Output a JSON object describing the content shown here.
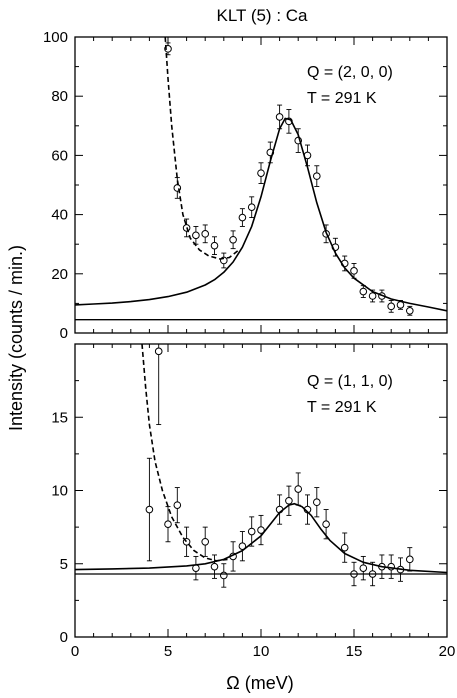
{
  "figure": {
    "title": "KLT (5) : Ca",
    "xlabel": "Ω (meV)",
    "ylabel": "Intensity (counts / min.)"
  },
  "chart_data": [
    {
      "type": "scatter",
      "panel": "top",
      "annotation_lines": [
        "Q = (2, 0, 0)",
        "T = 291 K"
      ],
      "xlim": [
        0,
        20
      ],
      "ylim": [
        0,
        100
      ],
      "x_ticks": [
        0,
        5,
        10,
        15,
        20
      ],
      "y_ticks": [
        0,
        20,
        40,
        60,
        80,
        100
      ],
      "grid": false,
      "series": [
        {
          "kind": "points_with_errorbars",
          "points": [
            {
              "x": 5.0,
              "y": 96,
              "err": 2
            },
            {
              "x": 5.5,
              "y": 49,
              "err": 3.5
            },
            {
              "x": 6.0,
              "y": 35.5,
              "err": 3
            },
            {
              "x": 6.5,
              "y": 33,
              "err": 3
            },
            {
              "x": 7.0,
              "y": 33.5,
              "err": 3
            },
            {
              "x": 7.5,
              "y": 29.5,
              "err": 3
            },
            {
              "x": 8.0,
              "y": 24.5,
              "err": 2.5
            },
            {
              "x": 8.5,
              "y": 31.5,
              "err": 3
            },
            {
              "x": 9.0,
              "y": 39,
              "err": 3
            },
            {
              "x": 9.5,
              "y": 42.5,
              "err": 3.5
            },
            {
              "x": 10.0,
              "y": 54,
              "err": 3.5
            },
            {
              "x": 10.5,
              "y": 61,
              "err": 3.5
            },
            {
              "x": 11.0,
              "y": 73,
              "err": 4
            },
            {
              "x": 11.5,
              "y": 71.5,
              "err": 4
            },
            {
              "x": 12.0,
              "y": 65,
              "err": 4
            },
            {
              "x": 12.5,
              "y": 60,
              "err": 3.5
            },
            {
              "x": 13.0,
              "y": 53,
              "err": 3.5
            },
            {
              "x": 13.5,
              "y": 33.5,
              "err": 3
            },
            {
              "x": 14.0,
              "y": 29,
              "err": 3
            },
            {
              "x": 14.5,
              "y": 23.5,
              "err": 2.5
            },
            {
              "x": 15.0,
              "y": 21,
              "err": 2.5
            },
            {
              "x": 15.5,
              "y": 14,
              "err": 2
            },
            {
              "x": 16.0,
              "y": 12.5,
              "err": 2
            },
            {
              "x": 16.5,
              "y": 12.5,
              "err": 2
            },
            {
              "x": 17.0,
              "y": 9,
              "err": 2
            },
            {
              "x": 17.5,
              "y": 9.5,
              "err": 1.5
            },
            {
              "x": 18.0,
              "y": 7.5,
              "err": 1.5
            }
          ]
        },
        {
          "kind": "solid_curve",
          "points": [
            [
              0,
              9.5
            ],
            [
              1,
              9.8
            ],
            [
              2,
              10.1
            ],
            [
              3,
              10.6
            ],
            [
              4,
              11.3
            ],
            [
              5,
              12.3
            ],
            [
              6,
              13.8
            ],
            [
              7,
              16.2
            ],
            [
              7.5,
              18.0
            ],
            [
              8,
              20.5
            ],
            [
              8.5,
              24.0
            ],
            [
              9,
              29.0
            ],
            [
              9.5,
              36.0
            ],
            [
              10,
              46.0
            ],
            [
              10.5,
              58.0
            ],
            [
              11,
              69.0
            ],
            [
              11.3,
              72.5
            ],
            [
              11.6,
              72.0
            ],
            [
              12,
              67.0
            ],
            [
              12.5,
              56.0
            ],
            [
              13,
              44.0
            ],
            [
              13.5,
              34.0
            ],
            [
              14,
              27.0
            ],
            [
              14.5,
              22.0
            ],
            [
              15,
              18.5
            ],
            [
              16,
              14.0
            ],
            [
              17,
              11.5
            ],
            [
              18,
              10.0
            ],
            [
              19,
              8.8
            ],
            [
              20,
              7.5
            ]
          ]
        },
        {
          "kind": "dashed_curve",
          "points": [
            [
              4.85,
              100
            ],
            [
              5.0,
              86
            ],
            [
              5.2,
              70
            ],
            [
              5.5,
              52
            ],
            [
              5.8,
              40
            ],
            [
              6.2,
              32
            ],
            [
              6.7,
              28
            ],
            [
              7.2,
              26
            ],
            [
              7.8,
              25
            ],
            [
              8.3,
              25.5
            ],
            [
              8.8,
              28
            ]
          ]
        },
        {
          "kind": "baseline",
          "y": 4.5
        }
      ]
    },
    {
      "type": "scatter",
      "panel": "bottom",
      "annotation_lines": [
        "Q = (1, 1, 0)",
        "T = 291 K"
      ],
      "xlim": [
        0,
        20
      ],
      "ylim": [
        0,
        20
      ],
      "x_ticks": [
        0,
        5,
        10,
        15,
        20
      ],
      "y_ticks": [
        0,
        5,
        10,
        15
      ],
      "grid": false,
      "series": [
        {
          "kind": "points_with_errorbars",
          "points": [
            {
              "x": 4.0,
              "y": 8.7,
              "err": 3.5
            },
            {
              "x": 4.5,
              "y": 19.5,
              "err": 5
            },
            {
              "x": 5.0,
              "y": 7.7,
              "err": 1.2
            },
            {
              "x": 5.5,
              "y": 9.0,
              "err": 1.2
            },
            {
              "x": 6.0,
              "y": 6.5,
              "err": 1.0
            },
            {
              "x": 6.5,
              "y": 4.7,
              "err": 0.8
            },
            {
              "x": 7.0,
              "y": 6.5,
              "err": 1.0
            },
            {
              "x": 7.5,
              "y": 4.8,
              "err": 0.8
            },
            {
              "x": 8.0,
              "y": 4.2,
              "err": 0.8
            },
            {
              "x": 8.5,
              "y": 5.5,
              "err": 1.0
            },
            {
              "x": 9.0,
              "y": 6.2,
              "err": 1.0
            },
            {
              "x": 9.5,
              "y": 7.2,
              "err": 1.0
            },
            {
              "x": 10.0,
              "y": 7.3,
              "err": 1.0
            },
            {
              "x": 11.0,
              "y": 8.7,
              "err": 1.0
            },
            {
              "x": 11.5,
              "y": 9.3,
              "err": 1.0
            },
            {
              "x": 12.0,
              "y": 10.1,
              "err": 1.1
            },
            {
              "x": 12.5,
              "y": 8.7,
              "err": 1.0
            },
            {
              "x": 13.0,
              "y": 9.2,
              "err": 1.0
            },
            {
              "x": 13.5,
              "y": 7.7,
              "err": 1.0
            },
            {
              "x": 14.5,
              "y": 6.1,
              "err": 1.0
            },
            {
              "x": 15.0,
              "y": 4.3,
              "err": 0.8
            },
            {
              "x": 15.5,
              "y": 4.7,
              "err": 0.8
            },
            {
              "x": 16.0,
              "y": 4.3,
              "err": 0.8
            },
            {
              "x": 16.5,
              "y": 4.8,
              "err": 0.8
            },
            {
              "x": 17.0,
              "y": 4.8,
              "err": 0.8
            },
            {
              "x": 17.5,
              "y": 4.6,
              "err": 0.8
            },
            {
              "x": 18.0,
              "y": 5.3,
              "err": 0.8
            }
          ]
        },
        {
          "kind": "solid_curve",
          "points": [
            [
              0,
              4.6
            ],
            [
              2,
              4.65
            ],
            [
              4,
              4.7
            ],
            [
              6,
              4.85
            ],
            [
              7,
              5.0
            ],
            [
              8,
              5.3
            ],
            [
              9,
              5.9
            ],
            [
              10,
              6.9
            ],
            [
              10.5,
              7.7
            ],
            [
              11,
              8.5
            ],
            [
              11.5,
              9.0
            ],
            [
              11.8,
              9.1
            ],
            [
              12.2,
              8.9
            ],
            [
              12.7,
              8.3
            ],
            [
              13.2,
              7.4
            ],
            [
              13.7,
              6.6
            ],
            [
              14.5,
              5.7
            ],
            [
              15.5,
              5.1
            ],
            [
              16.5,
              4.8
            ],
            [
              18,
              4.55
            ],
            [
              20,
              4.4
            ]
          ]
        },
        {
          "kind": "dashed_curve",
          "points": [
            [
              3.6,
              20
            ],
            [
              3.8,
              17
            ],
            [
              4.0,
              14.5
            ],
            [
              4.3,
              12
            ],
            [
              4.7,
              10
            ],
            [
              5.2,
              8.2
            ],
            [
              5.8,
              6.8
            ],
            [
              6.4,
              5.9
            ],
            [
              7.0,
              5.4
            ],
            [
              7.6,
              5.2
            ],
            [
              8.2,
              5.3
            ]
          ]
        },
        {
          "kind": "baseline",
          "y": 4.3
        }
      ]
    }
  ]
}
